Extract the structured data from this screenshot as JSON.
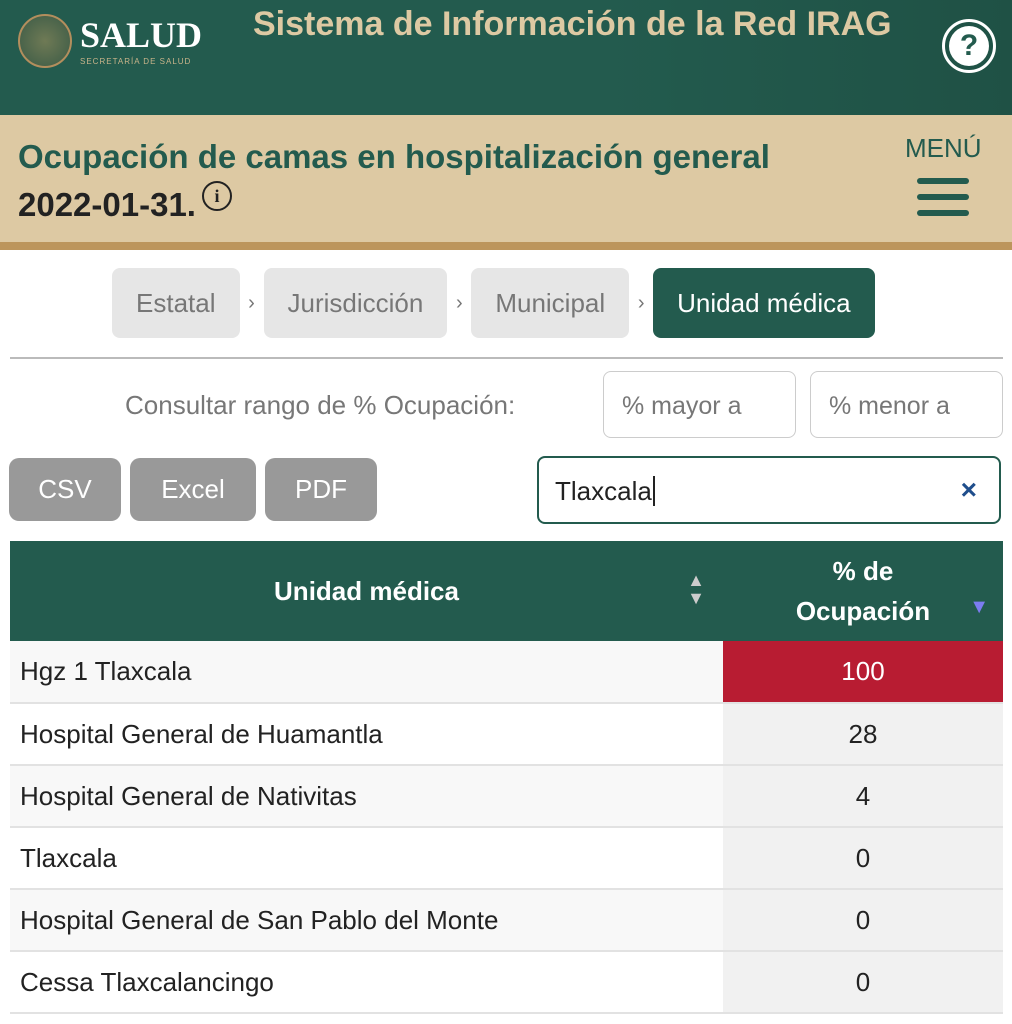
{
  "header": {
    "logo_text": "SALUD",
    "logo_sub": "SECRETARÍA DE SALUD",
    "title": "Sistema de Información de la Red IRAG",
    "help_label": "?"
  },
  "band": {
    "title": "Ocupación de camas en hospitalización general",
    "date": "2022-01-31.",
    "info_icon": "i",
    "menu_label": "MENÚ"
  },
  "breadcrumb": [
    {
      "label": "Estatal"
    },
    {
      "label": "Jurisdicción"
    },
    {
      "label": "Municipal"
    },
    {
      "label": "Unidad médica",
      "active": true
    }
  ],
  "breadcrumb_sep": "›",
  "range": {
    "label": "Consultar rango de % Ocupación:",
    "min_placeholder": "% mayor a",
    "max_placeholder": "% menor a"
  },
  "export": {
    "csv": "CSV",
    "excel": "Excel",
    "pdf": "PDF"
  },
  "search": {
    "value": "Tlaxcala",
    "clear": "×"
  },
  "table": {
    "columns": [
      "Unidad médica",
      "% de Ocupación"
    ],
    "rows": [
      {
        "name": "Hgz 1 Tlaxcala",
        "value": "100",
        "highlight": "#b81c32"
      },
      {
        "name": "Hospital General de Huamantla",
        "value": "28"
      },
      {
        "name": "Hospital General de Nativitas",
        "value": "4"
      },
      {
        "name": "Tlaxcala",
        "value": "0"
      },
      {
        "name": "Hospital General de San Pablo del Monte",
        "value": "0"
      },
      {
        "name": "Cessa Tlaxcalancingo",
        "value": "0"
      }
    ]
  },
  "colors": {
    "primary": "#235b4e",
    "beige": "#ddc9a3",
    "gold": "#bc955c",
    "alert": "#b81c32"
  }
}
